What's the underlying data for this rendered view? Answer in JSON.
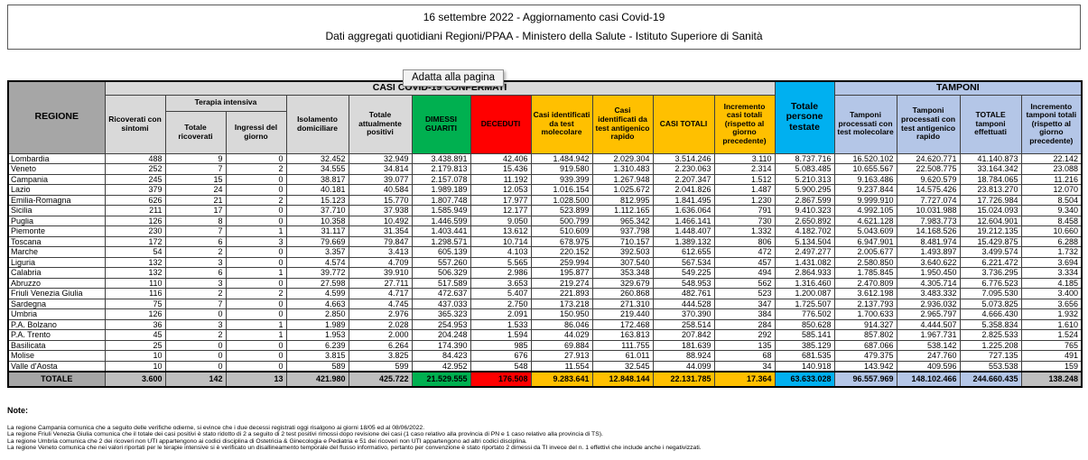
{
  "page": {
    "title_line1": "16 settembre 2022 - Aggiornamento casi Covid-19",
    "title_line2": "Dati aggregati quotidiani Regioni/PPAA - Ministero della Salute - Istituto Superiore di Sanità",
    "tooltip": "Adatta alla pagina"
  },
  "colors": {
    "c-region-hdr": "#a6a6a6",
    "c-hdr": "#d9d9d9",
    "c-green": "#00b050",
    "c-red": "#ff0000",
    "c-yellow": "#ffc000",
    "c-cyan": "#00b0f0",
    "c-lav": "#b4c6e7",
    "c-total-gray": "#bfbfbf"
  },
  "table": {
    "col_region": "REGIONE",
    "group_confirmed": "CASI COVID-19 CONFERMATI",
    "group_tamponi": "TAMPONI",
    "group_terapia": "Terapia intensiva",
    "columns": [
      "Ricoverati con sintomi",
      "Totale ricoverati",
      "Ingressi del giorno",
      "Isolamento domiciliare",
      "Totale attualmente positivi",
      "DIMESSI GUARITI",
      "DECEDUTI",
      "Casi identificati da test molecolare",
      "Casi identificati da test antigenico rapido",
      "CASI TOTALI",
      "Incremento casi totali (rispetto al giorno precedente)",
      "Totale persone testate",
      "Tamponi processati con test molecolare",
      "Tamponi processati con test antigenico rapido",
      "TOTALE tamponi effettuati",
      "Incremento tamponi totali (rispetto al giorno precedente)"
    ],
    "rows": [
      {
        "region": "Lombardia",
        "values": [
          "488",
          "9",
          "0",
          "32.452",
          "32.949",
          "3.438.891",
          "42.406",
          "1.484.942",
          "2.029.304",
          "3.514.246",
          "3.110",
          "8.737.716",
          "16.520.102",
          "24.620.771",
          "41.140.873",
          "22.142"
        ]
      },
      {
        "region": "Veneto",
        "values": [
          "252",
          "7",
          "2",
          "34.555",
          "34.814",
          "2.179.813",
          "15.436",
          "919.580",
          "1.310.483",
          "2.230.063",
          "2.314",
          "5.083.485",
          "10.655.567",
          "22.508.775",
          "33.164.342",
          "23.088"
        ]
      },
      {
        "region": "Campania",
        "values": [
          "245",
          "15",
          "0",
          "38.817",
          "39.077",
          "2.157.078",
          "11.192",
          "939.399",
          "1.267.948",
          "2.207.347",
          "1.512",
          "5.210.313",
          "9.163.486",
          "9.620.579",
          "18.784.065",
          "11.216"
        ]
      },
      {
        "region": "Lazio",
        "values": [
          "379",
          "24",
          "0",
          "40.181",
          "40.584",
          "1.989.189",
          "12.053",
          "1.016.154",
          "1.025.672",
          "2.041.826",
          "1.487",
          "5.900.295",
          "9.237.844",
          "14.575.426",
          "23.813.270",
          "12.070"
        ]
      },
      {
        "region": "Emilia-Romagna",
        "values": [
          "626",
          "21",
          "2",
          "15.123",
          "15.770",
          "1.807.748",
          "17.977",
          "1.028.500",
          "812.995",
          "1.841.495",
          "1.230",
          "2.867.599",
          "9.999.910",
          "7.727.074",
          "17.726.984",
          "8.504"
        ]
      },
      {
        "region": "Sicilia",
        "values": [
          "211",
          "17",
          "0",
          "37.710",
          "37.938",
          "1.585.949",
          "12.177",
          "523.899",
          "1.112.165",
          "1.636.064",
          "791",
          "9.410.323",
          "4.992.105",
          "10.031.988",
          "15.024.093",
          "9.340"
        ]
      },
      {
        "region": "Puglia",
        "values": [
          "126",
          "8",
          "0",
          "10.358",
          "10.492",
          "1.446.599",
          "9.050",
          "500.799",
          "965.342",
          "1.466.141",
          "730",
          "2.650.892",
          "4.621.128",
          "7.983.773",
          "12.604.901",
          "8.458"
        ]
      },
      {
        "region": "Piemonte",
        "values": [
          "230",
          "7",
          "1",
          "31.117",
          "31.354",
          "1.403.441",
          "13.612",
          "510.609",
          "937.798",
          "1.448.407",
          "1.332",
          "4.182.702",
          "5.043.609",
          "14.168.526",
          "19.212.135",
          "10.660"
        ]
      },
      {
        "region": "Toscana",
        "values": [
          "172",
          "6",
          "3",
          "79.669",
          "79.847",
          "1.298.571",
          "10.714",
          "678.975",
          "710.157",
          "1.389.132",
          "806",
          "5.134.504",
          "6.947.901",
          "8.481.974",
          "15.429.875",
          "6.288"
        ]
      },
      {
        "region": "Marche",
        "values": [
          "54",
          "2",
          "0",
          "3.357",
          "3.413",
          "605.139",
          "4.103",
          "220.152",
          "392.503",
          "612.655",
          "472",
          "2.497.277",
          "2.005.677",
          "1.493.897",
          "3.499.574",
          "1.732"
        ]
      },
      {
        "region": "Liguria",
        "values": [
          "132",
          "3",
          "0",
          "4.574",
          "4.709",
          "557.260",
          "5.565",
          "259.994",
          "307.540",
          "567.534",
          "457",
          "1.431.082",
          "2.580.850",
          "3.640.622",
          "6.221.472",
          "3.694"
        ]
      },
      {
        "region": "Calabria",
        "values": [
          "132",
          "6",
          "1",
          "39.772",
          "39.910",
          "506.329",
          "2.986",
          "195.877",
          "353.348",
          "549.225",
          "494",
          "2.864.933",
          "1.785.845",
          "1.950.450",
          "3.736.295",
          "3.334"
        ]
      },
      {
        "region": "Abruzzo",
        "values": [
          "110",
          "3",
          "0",
          "27.598",
          "27.711",
          "517.589",
          "3.653",
          "219.274",
          "329.679",
          "548.953",
          "562",
          "1.316.460",
          "2.470.809",
          "4.305.714",
          "6.776.523",
          "4.185"
        ]
      },
      {
        "region": "Friuli Venezia Giulia",
        "values": [
          "116",
          "2",
          "2",
          "4.599",
          "4.717",
          "472.637",
          "5.407",
          "221.893",
          "260.868",
          "482.761",
          "523",
          "1.200.087",
          "3.612.198",
          "3.483.332",
          "7.095.530",
          "3.400"
        ]
      },
      {
        "region": "Sardegna",
        "values": [
          "75",
          "7",
          "0",
          "4.663",
          "4.745",
          "437.033",
          "2.750",
          "173.218",
          "271.310",
          "444.528",
          "347",
          "1.725.507",
          "2.137.793",
          "2.936.032",
          "5.073.825",
          "3.656"
        ]
      },
      {
        "region": "Umbria",
        "values": [
          "126",
          "0",
          "0",
          "2.850",
          "2.976",
          "365.323",
          "2.091",
          "150.950",
          "219.440",
          "370.390",
          "384",
          "776.502",
          "1.700.633",
          "2.965.797",
          "4.666.430",
          "1.932"
        ]
      },
      {
        "region": "P.A. Bolzano",
        "values": [
          "36",
          "3",
          "1",
          "1.989",
          "2.028",
          "254.953",
          "1.533",
          "86.046",
          "172.468",
          "258.514",
          "284",
          "850.628",
          "914.327",
          "4.444.507",
          "5.358.834",
          "1.610"
        ]
      },
      {
        "region": "P.A. Trento",
        "values": [
          "45",
          "2",
          "1",
          "1.953",
          "2.000",
          "204.248",
          "1.594",
          "44.029",
          "163.813",
          "207.842",
          "292",
          "585.141",
          "857.802",
          "1.967.731",
          "2.825.533",
          "1.524"
        ]
      },
      {
        "region": "Basilicata",
        "values": [
          "25",
          "0",
          "0",
          "6.239",
          "6.264",
          "174.390",
          "985",
          "69.884",
          "111.755",
          "181.639",
          "135",
          "385.129",
          "687.066",
          "538.142",
          "1.225.208",
          "765"
        ]
      },
      {
        "region": "Molise",
        "values": [
          "10",
          "0",
          "0",
          "3.815",
          "3.825",
          "84.423",
          "676",
          "27.913",
          "61.011",
          "88.924",
          "68",
          "681.535",
          "479.375",
          "247.760",
          "727.135",
          "491"
        ]
      },
      {
        "region": "Valle d'Aosta",
        "values": [
          "10",
          "0",
          "0",
          "589",
          "599",
          "42.952",
          "548",
          "11.554",
          "32.545",
          "44.099",
          "34",
          "140.918",
          "143.942",
          "409.596",
          "553.538",
          "159"
        ]
      }
    ],
    "total": {
      "region": "TOTALE",
      "values": [
        "3.600",
        "142",
        "13",
        "421.980",
        "425.722",
        "21.529.555",
        "176.508",
        "9.283.641",
        "12.848.144",
        "22.131.785",
        "17.364",
        "63.633.028",
        "96.557.969",
        "148.102.466",
        "244.660.435",
        "138.248"
      ]
    }
  },
  "notes": {
    "title": "Note:",
    "items": [
      "La regione Campania comunica che a seguito delle verifiche odierne, si evince che i due decessi registrati oggi risalgono ai giorni 18/05 ed al 08/06/2022.",
      "La regione Friuli Venezia Giulia comunica che il totale dei casi positivi è stato ridotto di 2 a seguito di 2 test positivi rimossi dopo revisione dei casi (1 caso relativo alla provincia di PN e 1 caso relativo alla provincia di TS).",
      "La regione Umbria comunica che 2 dei ricoveri non UTI appartengono ai codici disciplina di Ostetricia & Ginecologia e Pediatria e 51 dei ricoveri non UTI appartengono ad altri codici disciplina.",
      "La regione Veneto comunica che nei valori riportati per le terapie intensive si è verificato un disallineamento temporale del flusso informativo, pertanto per convenzione è stato riportato 2 dimessi da TI  invece del n. 1 effettivi che include anche i negativizzati."
    ]
  }
}
